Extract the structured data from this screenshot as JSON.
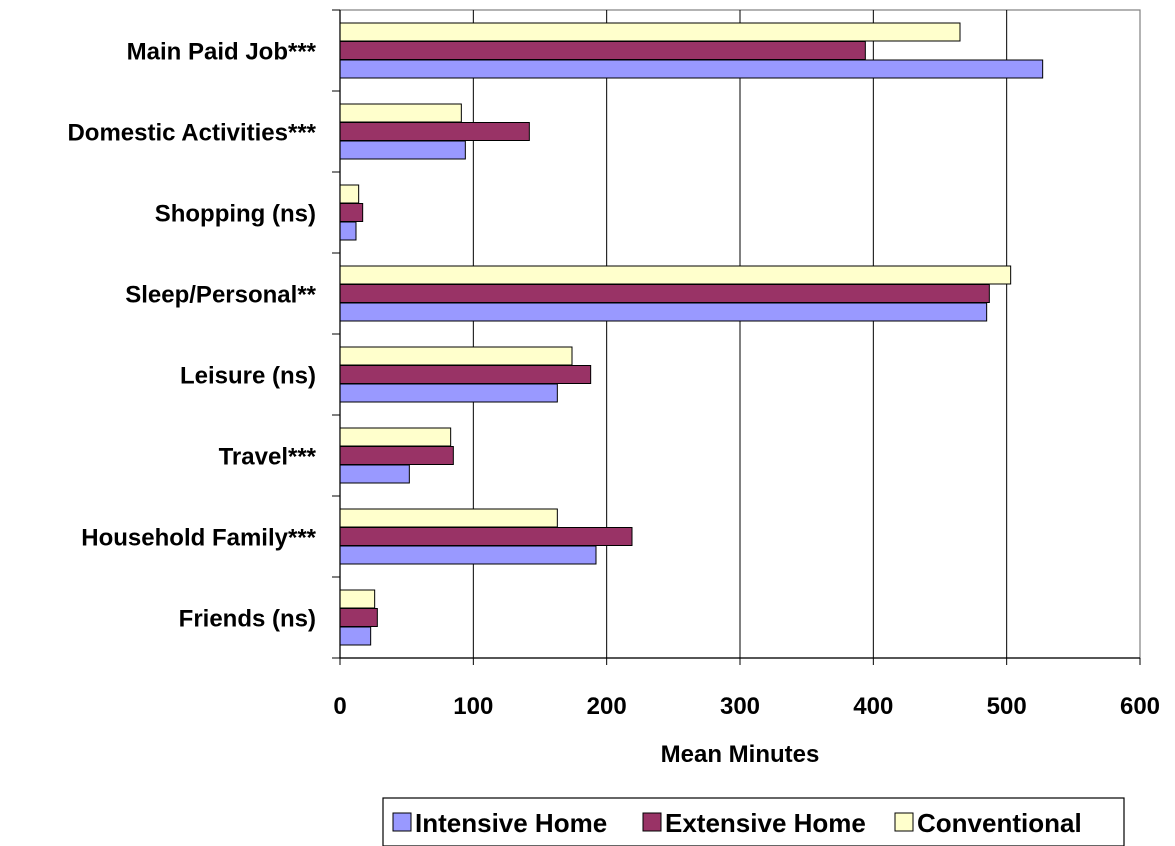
{
  "chart_data": {
    "type": "bar",
    "orientation": "horizontal",
    "categories": [
      "Main Paid Job***",
      "Domestic Activities***",
      "Shopping (ns)",
      "Sleep/Personal**",
      "Leisure (ns)",
      "Travel***",
      "Household Family***",
      "Friends (ns)"
    ],
    "series": [
      {
        "name": "Intensive Home",
        "color": "#9999ff",
        "values": [
          527,
          94,
          12,
          485,
          163,
          52,
          192,
          23
        ]
      },
      {
        "name": "Extensive Home",
        "color": "#993366",
        "values": [
          394,
          142,
          17,
          487,
          188,
          85,
          219,
          28
        ]
      },
      {
        "name": "Conventional",
        "color": "#ffffcc",
        "values": [
          465,
          91,
          14,
          503,
          174,
          83,
          163,
          26
        ]
      }
    ],
    "title": "",
    "xlabel": "Mean Minutes",
    "ylabel": "",
    "xlim": [
      0,
      600
    ],
    "xticks": [
      "0",
      "100",
      "200",
      "300",
      "400",
      "500",
      "600"
    ],
    "grid": "vertical",
    "legend_position": "bottom"
  }
}
